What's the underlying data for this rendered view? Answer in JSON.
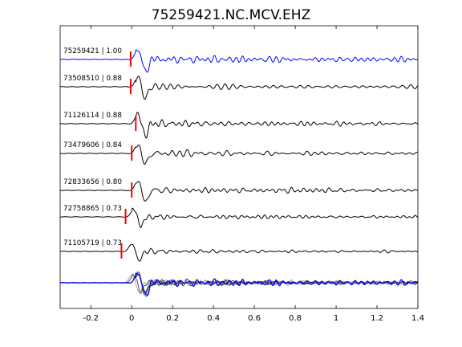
{
  "chart_data": {
    "type": "line",
    "title": "75259421.NC.MCV.EHZ",
    "xlabel": "",
    "ylabel": "",
    "xlim": [
      -0.35,
      1.4
    ],
    "x_ticks": [
      -0.2,
      0,
      0.2,
      0.4,
      0.6,
      0.8,
      1,
      1.2,
      1.4
    ],
    "x_tick_labels": [
      "-0.2",
      "0",
      "0.2",
      "0.4",
      "0.6",
      "0.8",
      "1",
      "1.2",
      "1.4"
    ],
    "y_ticks_visible": false,
    "grid": false,
    "legend": "none",
    "colors": {
      "master_trace": "#0000ff",
      "traces": "#000000",
      "pick_marker": "#ff0000",
      "overlay_other": "#808080"
    },
    "traces": [
      {
        "label": "75259421 | 1.00",
        "pick_time": -0.005,
        "color": "#0000ff",
        "amp": 1.0,
        "seed": 1,
        "onset": 0.0
      },
      {
        "label": "73508510 | 0.88",
        "pick_time": -0.005,
        "color": "#000000",
        "amp": 0.9,
        "seed": 2,
        "onset": 0.0
      },
      {
        "label": "71126114 | 0.88",
        "pick_time": 0.02,
        "color": "#000000",
        "amp": 0.9,
        "seed": 3,
        "onset": 0.0
      },
      {
        "label": "73479606 | 0.84",
        "pick_time": 0.0,
        "color": "#000000",
        "amp": 0.9,
        "seed": 4,
        "onset": 0.0
      },
      {
        "label": "72833656 | 0.80",
        "pick_time": 0.0,
        "color": "#000000",
        "amp": 0.95,
        "seed": 5,
        "onset": 0.0
      },
      {
        "label": "72758865 | 0.73",
        "pick_time": -0.03,
        "color": "#000000",
        "amp": 0.7,
        "seed": 6,
        "onset": -0.02
      },
      {
        "label": "71105719 | 0.73",
        "pick_time": -0.05,
        "color": "#000000",
        "amp": 0.7,
        "seed": 7,
        "onset": -0.03
      }
    ],
    "overlay_stack": true
  }
}
